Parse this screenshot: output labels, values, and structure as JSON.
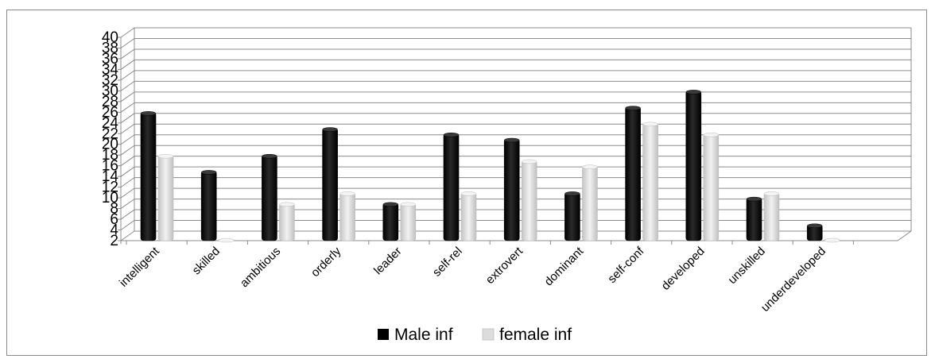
{
  "chart_data": {
    "type": "bar",
    "title": "",
    "xlabel": "",
    "ylabel": "",
    "ylim": [
      2,
      40
    ],
    "yticks": [
      "2",
      "4",
      "6",
      "8",
      "10",
      "12",
      "14",
      "16",
      "18",
      "20",
      "22",
      "24",
      "26",
      "28",
      "30",
      "32",
      "34",
      "36",
      "38",
      "40"
    ],
    "grid": true,
    "legend_position": "bottom",
    "categories": [
      "intelligent",
      "skilled",
      "ambitious",
      "orderly",
      "leader",
      "self-rel",
      "extrovert",
      "dominant",
      "self-conf",
      "developed",
      "unskilled",
      "underdeveloped"
    ],
    "series": [
      {
        "name": "Male inf",
        "color": "#0a0a0a",
        "values": [
          26,
          15,
          18,
          23,
          9,
          22,
          21,
          11,
          27,
          30,
          10,
          5
        ]
      },
      {
        "name": "female inf",
        "color": "#d8d8d8",
        "values": [
          18,
          2,
          9,
          11,
          9,
          11,
          17,
          16,
          24,
          22,
          11,
          1
        ]
      }
    ]
  }
}
